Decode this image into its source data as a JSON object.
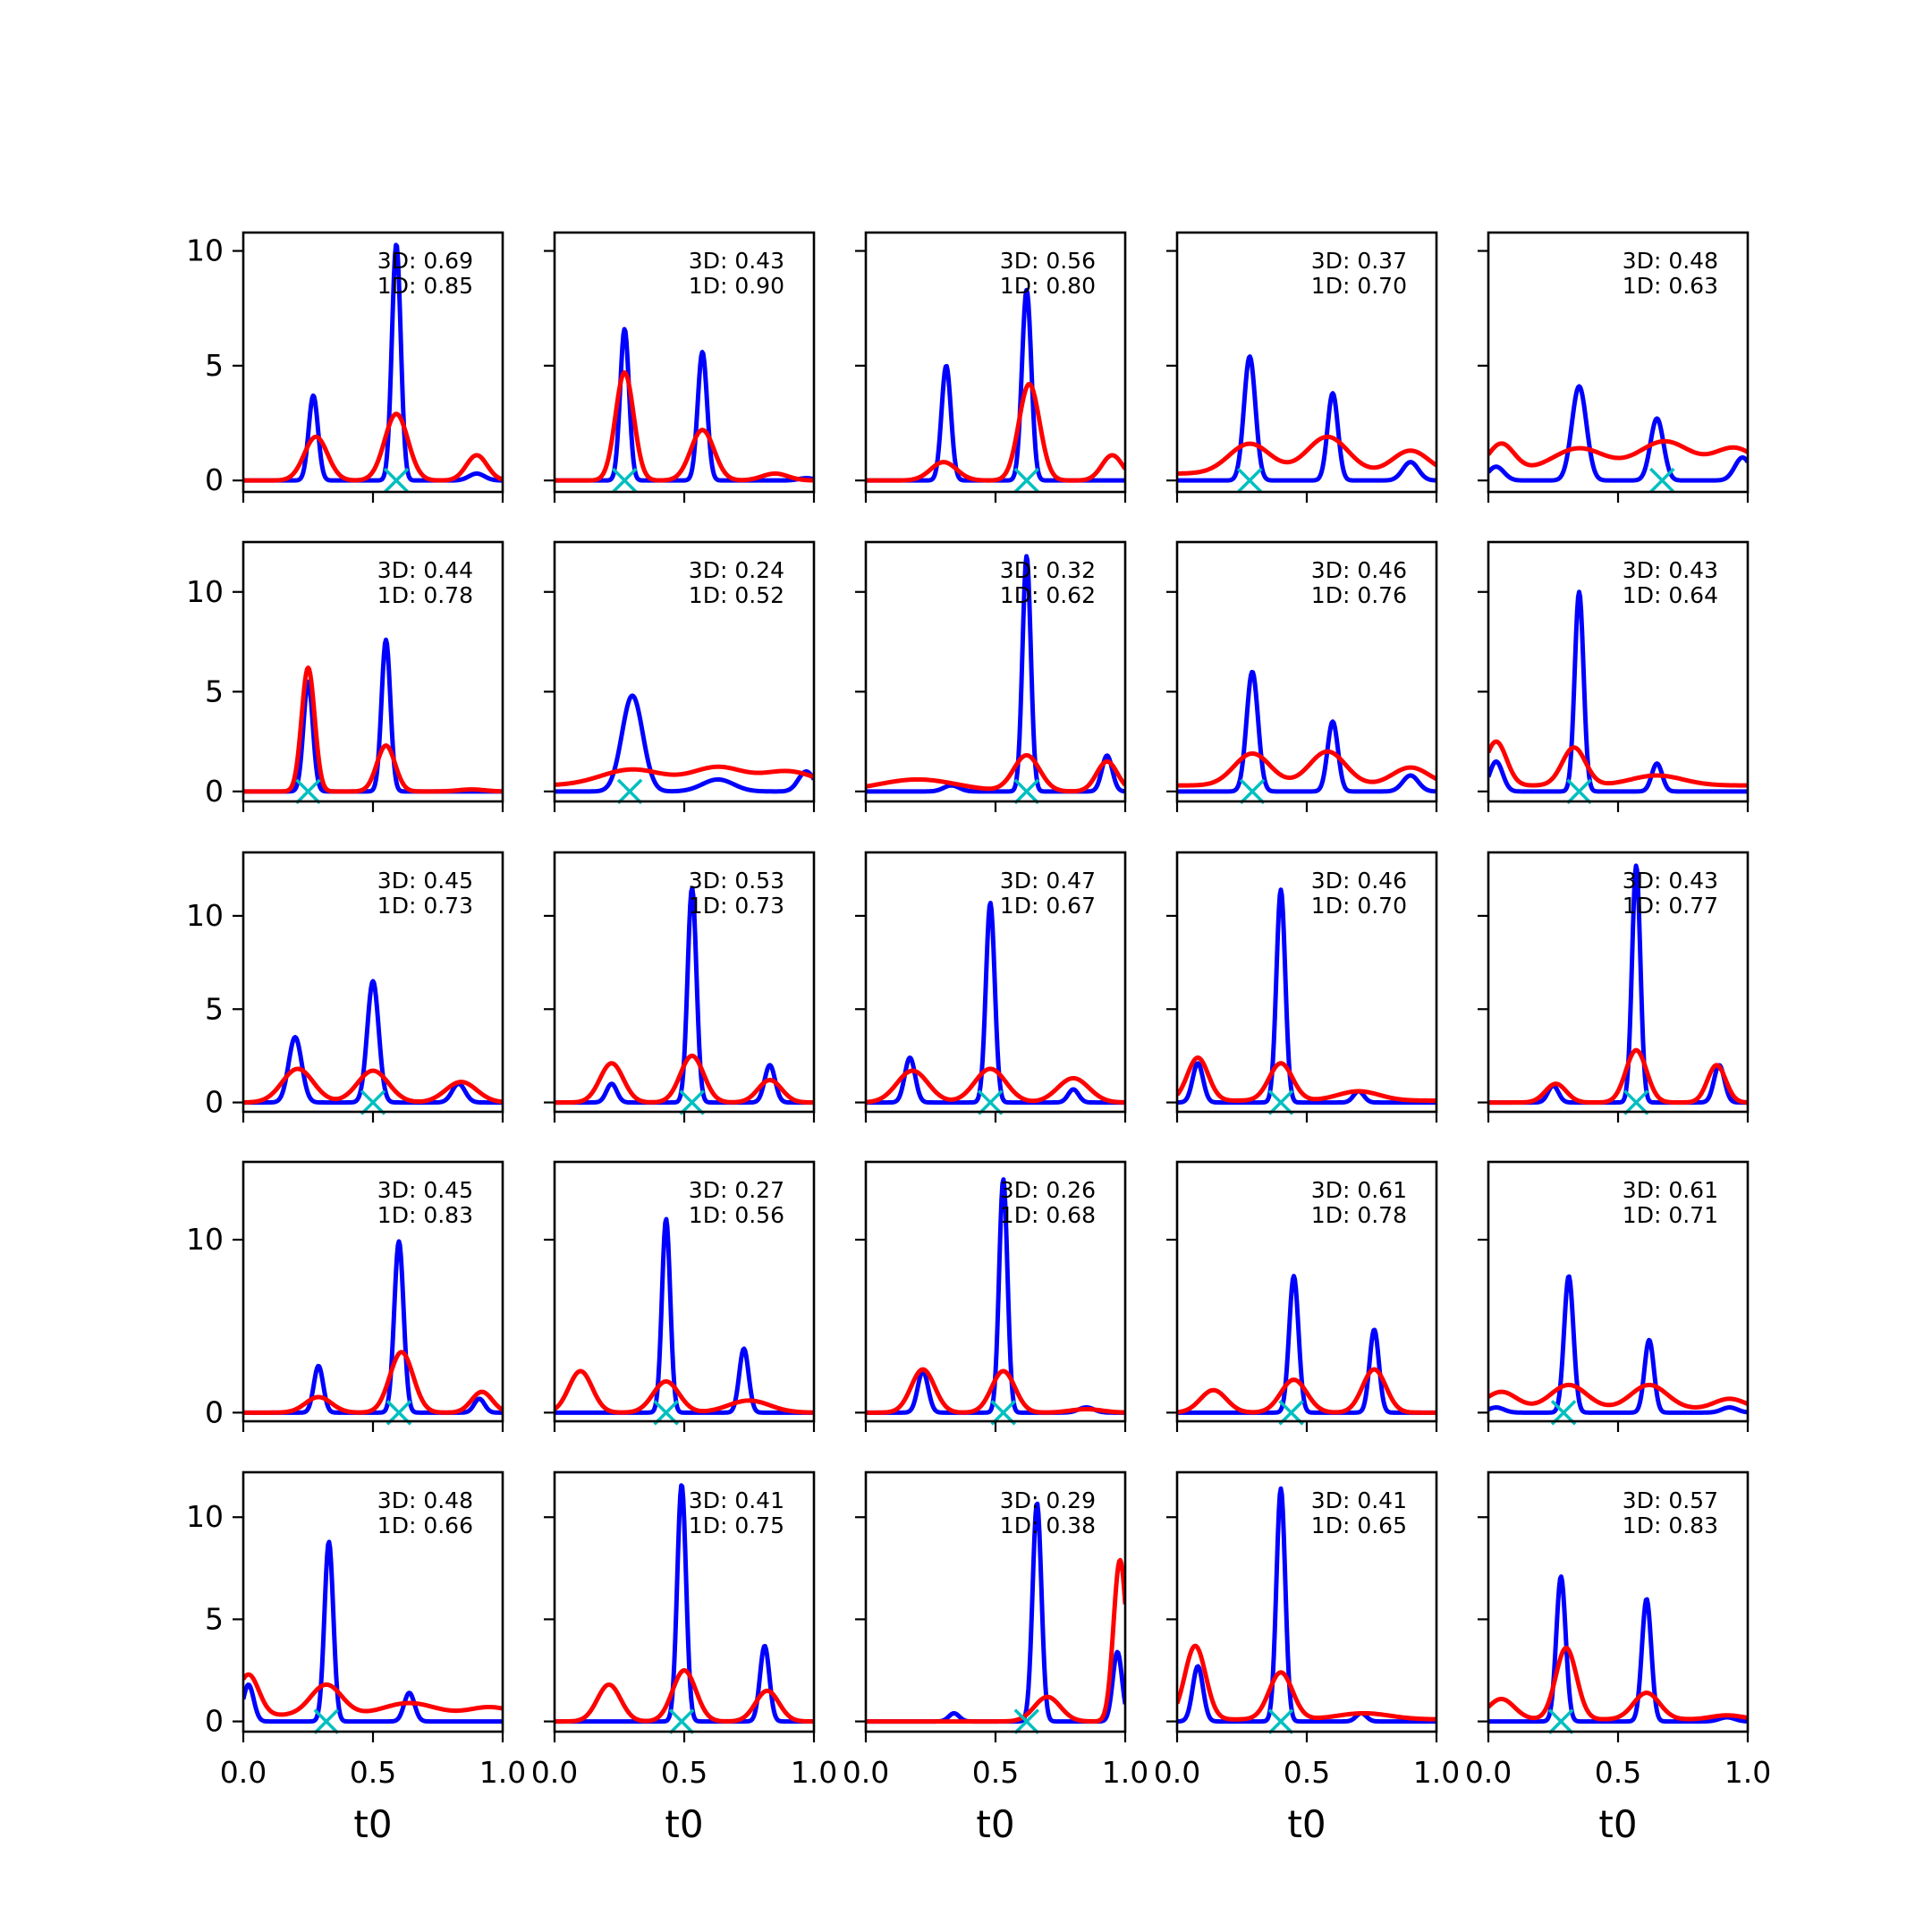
{
  "figure": {
    "xlabel": "t0",
    "xticks": [
      "0.0",
      "0.5",
      "1.0"
    ],
    "colors": {
      "curve_3d": "#0000ff",
      "curve_1d": "#ff0000",
      "marker": "#00bfbf",
      "axes": "#000000"
    }
  },
  "chart_data": {
    "type": "line",
    "layout": "5x5 grid of small multiples, shared x axis (t0), shared y axis per row",
    "xlim": [
      0,
      1
    ],
    "rows": [
      {
        "ylim": [
          -0.5,
          10.8
        ],
        "yticks": [
          0,
          5,
          10
        ]
      },
      {
        "ylim": [
          -0.5,
          12.5
        ],
        "yticks": [
          0,
          5,
          10
        ]
      },
      {
        "ylim": [
          -0.5,
          13.4
        ],
        "yticks": [
          0,
          5,
          10
        ]
      },
      {
        "ylim": [
          -0.5,
          14.5
        ],
        "yticks": [
          0,
          10
        ]
      },
      {
        "ylim": [
          -0.5,
          12.2
        ],
        "yticks": [
          0,
          5,
          10
        ]
      }
    ],
    "panels": [
      {
        "labels": [
          "3D: 0.69",
          "1D: 0.85"
        ],
        "marker_x": 0.59,
        "blue": [
          [
            0.27,
            3.7,
            0.018
          ],
          [
            0.59,
            10.3,
            0.017
          ],
          [
            0.9,
            0.3,
            0.03
          ]
        ],
        "red": [
          [
            0.28,
            1.9,
            0.045
          ],
          [
            0.59,
            2.9,
            0.045
          ],
          [
            0.9,
            1.1,
            0.04
          ]
        ],
        "red_base": 0.0
      },
      {
        "labels": [
          "3D: 0.43",
          "1D: 0.90"
        ],
        "marker_x": 0.27,
        "blue": [
          [
            0.27,
            6.6,
            0.017
          ],
          [
            0.57,
            5.6,
            0.018
          ],
          [
            0.97,
            0.1,
            0.03
          ]
        ],
        "red": [
          [
            0.27,
            4.7,
            0.035
          ],
          [
            0.57,
            2.2,
            0.045
          ],
          [
            0.85,
            0.3,
            0.05
          ]
        ],
        "red_base": 0.0
      },
      {
        "labels": [
          "3D: 0.56",
          "1D: 0.80"
        ],
        "marker_x": 0.62,
        "blue": [
          [
            0.31,
            5.0,
            0.018
          ],
          [
            0.62,
            8.3,
            0.018
          ]
        ],
        "red": [
          [
            0.3,
            0.8,
            0.05
          ],
          [
            0.63,
            4.2,
            0.04
          ],
          [
            0.95,
            1.1,
            0.04
          ]
        ],
        "red_base": 0.0
      },
      {
        "labels": [
          "3D: 0.37",
          "1D: 0.70"
        ],
        "marker_x": 0.28,
        "blue": [
          [
            0.28,
            5.4,
            0.022
          ],
          [
            0.6,
            3.8,
            0.02
          ],
          [
            0.9,
            0.8,
            0.03
          ]
        ],
        "red": [
          [
            0.28,
            1.3,
            0.08
          ],
          [
            0.58,
            1.6,
            0.08
          ],
          [
            0.9,
            1.0,
            0.07
          ]
        ],
        "red_base": 0.3
      },
      {
        "labels": [
          "3D: 0.48",
          "1D: 0.63"
        ],
        "marker_x": 0.67,
        "blue": [
          [
            0.03,
            0.6,
            0.03
          ],
          [
            0.35,
            4.1,
            0.028
          ],
          [
            0.65,
            2.7,
            0.025
          ],
          [
            0.98,
            1.0,
            0.03
          ]
        ],
        "red": [
          [
            0.05,
            1.2,
            0.05
          ],
          [
            0.35,
            1.0,
            0.1
          ],
          [
            0.68,
            1.3,
            0.1
          ],
          [
            0.95,
            1.0,
            0.08
          ]
        ],
        "red_base": 0.4
      },
      {
        "labels": [
          "3D: 0.44",
          "1D: 0.78"
        ],
        "marker_x": 0.25,
        "blue": [
          [
            0.25,
            5.5,
            0.018
          ],
          [
            0.55,
            7.6,
            0.017
          ]
        ],
        "red": [
          [
            0.25,
            6.2,
            0.025
          ],
          [
            0.55,
            2.3,
            0.035
          ],
          [
            0.88,
            0.1,
            0.05
          ]
        ],
        "red_base": 0.0
      },
      {
        "labels": [
          "3D: 0.24",
          "1D: 0.52"
        ],
        "marker_x": 0.29,
        "blue": [
          [
            0.3,
            4.8,
            0.04
          ],
          [
            0.63,
            0.6,
            0.06
          ],
          [
            0.97,
            1.0,
            0.03
          ]
        ],
        "red": [
          [
            0.3,
            0.8,
            0.12
          ],
          [
            0.63,
            0.9,
            0.1
          ],
          [
            0.9,
            0.7,
            0.1
          ]
        ],
        "red_base": 0.3
      },
      {
        "labels": [
          "3D: 0.32",
          "1D: 0.62"
        ],
        "marker_x": 0.62,
        "blue": [
          [
            0.33,
            0.3,
            0.03
          ],
          [
            0.62,
            11.8,
            0.016
          ],
          [
            0.93,
            1.8,
            0.02
          ]
        ],
        "red": [
          [
            0.2,
            0.6,
            0.15
          ],
          [
            0.62,
            1.8,
            0.05
          ],
          [
            0.93,
            1.5,
            0.04
          ]
        ],
        "red_base": 0.0
      },
      {
        "labels": [
          "3D: 0.46",
          "1D: 0.76"
        ],
        "marker_x": 0.29,
        "blue": [
          [
            0.29,
            6.0,
            0.022
          ],
          [
            0.6,
            3.5,
            0.02
          ],
          [
            0.9,
            0.8,
            0.03
          ]
        ],
        "red": [
          [
            0.29,
            1.6,
            0.07
          ],
          [
            0.58,
            1.7,
            0.07
          ],
          [
            0.9,
            0.9,
            0.07
          ]
        ],
        "red_base": 0.3
      },
      {
        "labels": [
          "3D: 0.43",
          "1D: 0.64"
        ],
        "marker_x": 0.35,
        "blue": [
          [
            0.03,
            1.5,
            0.025
          ],
          [
            0.35,
            10.0,
            0.017
          ],
          [
            0.65,
            1.4,
            0.02
          ]
        ],
        "red": [
          [
            0.03,
            2.2,
            0.04
          ],
          [
            0.33,
            1.9,
            0.045
          ],
          [
            0.65,
            0.5,
            0.1
          ]
        ],
        "red_base": 0.3
      },
      {
        "labels": [
          "3D: 0.45",
          "1D: 0.73"
        ],
        "marker_x": 0.5,
        "blue": [
          [
            0.2,
            3.5,
            0.025
          ],
          [
            0.5,
            6.5,
            0.022
          ],
          [
            0.83,
            1.0,
            0.025
          ]
        ],
        "red": [
          [
            0.21,
            1.8,
            0.06
          ],
          [
            0.5,
            1.7,
            0.06
          ],
          [
            0.84,
            1.1,
            0.06
          ]
        ],
        "red_base": 0.0
      },
      {
        "labels": [
          "3D: 0.53",
          "1D: 0.73"
        ],
        "marker_x": 0.53,
        "blue": [
          [
            0.22,
            1.0,
            0.02
          ],
          [
            0.53,
            11.5,
            0.017
          ],
          [
            0.83,
            2.0,
            0.02
          ]
        ],
        "red": [
          [
            0.22,
            2.1,
            0.045
          ],
          [
            0.53,
            2.5,
            0.045
          ],
          [
            0.83,
            1.2,
            0.045
          ]
        ],
        "red_base": 0.0
      },
      {
        "labels": [
          "3D: 0.47",
          "1D: 0.67"
        ],
        "marker_x": 0.48,
        "blue": [
          [
            0.17,
            2.4,
            0.02
          ],
          [
            0.48,
            10.7,
            0.017
          ],
          [
            0.8,
            0.7,
            0.02
          ]
        ],
        "red": [
          [
            0.18,
            1.7,
            0.06
          ],
          [
            0.48,
            1.8,
            0.06
          ],
          [
            0.8,
            1.3,
            0.06
          ]
        ],
        "red_base": 0.0
      },
      {
        "labels": [
          "3D: 0.46",
          "1D: 0.70"
        ],
        "marker_x": 0.4,
        "blue": [
          [
            0.08,
            2.1,
            0.02
          ],
          [
            0.4,
            11.4,
            0.017
          ],
          [
            0.7,
            0.6,
            0.02
          ]
        ],
        "red": [
          [
            0.08,
            2.3,
            0.04
          ],
          [
            0.4,
            2.0,
            0.045
          ],
          [
            0.7,
            0.5,
            0.08
          ]
        ],
        "red_base": 0.1
      },
      {
        "labels": [
          "3D: 0.43",
          "1D: 0.77"
        ],
        "marker_x": 0.57,
        "blue": [
          [
            0.25,
            0.9,
            0.02
          ],
          [
            0.57,
            12.7,
            0.016
          ],
          [
            0.89,
            2.0,
            0.02
          ]
        ],
        "red": [
          [
            0.26,
            1.0,
            0.04
          ],
          [
            0.57,
            2.8,
            0.04
          ],
          [
            0.88,
            2.0,
            0.035
          ]
        ],
        "red_base": 0.0
      },
      {
        "labels": [
          "3D: 0.45",
          "1D: 0.83"
        ],
        "marker_x": 0.6,
        "blue": [
          [
            0.29,
            2.7,
            0.018
          ],
          [
            0.6,
            9.9,
            0.018
          ],
          [
            0.91,
            0.8,
            0.02
          ]
        ],
        "red": [
          [
            0.29,
            0.9,
            0.05
          ],
          [
            0.61,
            3.5,
            0.045
          ],
          [
            0.92,
            1.2,
            0.04
          ]
        ],
        "red_base": 0.0
      },
      {
        "labels": [
          "3D: 0.27",
          "1D: 0.56"
        ],
        "marker_x": 0.43,
        "blue": [
          [
            0.43,
            11.2,
            0.016
          ],
          [
            0.73,
            3.7,
            0.018
          ]
        ],
        "red": [
          [
            0.1,
            2.4,
            0.045
          ],
          [
            0.43,
            1.8,
            0.05
          ],
          [
            0.75,
            0.7,
            0.08
          ]
        ],
        "red_base": 0.0
      },
      {
        "labels": [
          "3D: 0.26",
          "1D: 0.68"
        ],
        "marker_x": 0.53,
        "blue": [
          [
            0.22,
            2.4,
            0.02
          ],
          [
            0.53,
            13.5,
            0.016
          ],
          [
            0.85,
            0.3,
            0.03
          ]
        ],
        "red": [
          [
            0.22,
            2.5,
            0.045
          ],
          [
            0.53,
            2.4,
            0.045
          ],
          [
            0.85,
            0.2,
            0.06
          ]
        ],
        "red_base": 0.0
      },
      {
        "labels": [
          "3D: 0.61",
          "1D: 0.78"
        ],
        "marker_x": 0.44,
        "blue": [
          [
            0.45,
            7.9,
            0.018
          ],
          [
            0.76,
            4.8,
            0.018
          ]
        ],
        "red": [
          [
            0.14,
            1.3,
            0.05
          ],
          [
            0.45,
            1.9,
            0.05
          ],
          [
            0.76,
            2.5,
            0.045
          ]
        ],
        "red_base": 0.0
      },
      {
        "labels": [
          "3D: 0.61",
          "1D: 0.71"
        ],
        "marker_x": 0.29,
        "blue": [
          [
            0.03,
            0.3,
            0.03
          ],
          [
            0.31,
            7.9,
            0.018
          ],
          [
            0.62,
            4.2,
            0.018
          ],
          [
            0.93,
            0.3,
            0.03
          ]
        ],
        "red": [
          [
            0.05,
            1.0,
            0.06
          ],
          [
            0.31,
            1.4,
            0.07
          ],
          [
            0.62,
            1.4,
            0.07
          ],
          [
            0.93,
            0.6,
            0.06
          ]
        ],
        "red_base": 0.2
      },
      {
        "labels": [
          "3D: 0.48",
          "1D: 0.66"
        ],
        "marker_x": 0.32,
        "blue": [
          [
            0.02,
            1.8,
            0.02
          ],
          [
            0.33,
            8.8,
            0.017
          ],
          [
            0.64,
            1.4,
            0.02
          ]
        ],
        "red": [
          [
            0.02,
            2.0,
            0.04
          ],
          [
            0.32,
            1.5,
            0.06
          ],
          [
            0.64,
            0.6,
            0.1
          ],
          [
            0.95,
            0.4,
            0.08
          ]
        ],
        "red_base": 0.3
      },
      {
        "labels": [
          "3D: 0.41",
          "1D: 0.75"
        ],
        "marker_x": 0.49,
        "blue": [
          [
            0.49,
            11.6,
            0.017
          ],
          [
            0.81,
            3.7,
            0.018
          ]
        ],
        "red": [
          [
            0.21,
            1.8,
            0.045
          ],
          [
            0.5,
            2.5,
            0.045
          ],
          [
            0.82,
            1.5,
            0.045
          ]
        ],
        "red_base": 0.0
      },
      {
        "labels": [
          "3D: 0.29",
          "1D: 0.38"
        ],
        "marker_x": 0.62,
        "blue": [
          [
            0.34,
            0.4,
            0.02
          ],
          [
            0.66,
            10.7,
            0.017
          ],
          [
            0.97,
            3.4,
            0.018
          ]
        ],
        "red": [
          [
            0.7,
            1.2,
            0.05
          ],
          [
            0.98,
            7.9,
            0.025
          ]
        ],
        "red_base": 0.0
      },
      {
        "labels": [
          "3D: 0.41",
          "1D: 0.65"
        ],
        "marker_x": 0.4,
        "blue": [
          [
            0.08,
            2.7,
            0.02
          ],
          [
            0.4,
            11.4,
            0.017
          ],
          [
            0.71,
            0.4,
            0.02
          ]
        ],
        "red": [
          [
            0.07,
            3.6,
            0.04
          ],
          [
            0.4,
            2.3,
            0.045
          ],
          [
            0.72,
            0.3,
            0.1
          ]
        ],
        "red_base": 0.1
      },
      {
        "labels": [
          "3D: 0.57",
          "1D: 0.83"
        ],
        "marker_x": 0.28,
        "blue": [
          [
            0.28,
            7.1,
            0.018
          ],
          [
            0.61,
            6.0,
            0.018
          ],
          [
            0.92,
            0.2,
            0.03
          ]
        ],
        "red": [
          [
            0.05,
            1.0,
            0.05
          ],
          [
            0.3,
            3.5,
            0.04
          ],
          [
            0.61,
            1.3,
            0.05
          ],
          [
            0.92,
            0.2,
            0.06
          ]
        ],
        "red_base": 0.1
      }
    ]
  }
}
